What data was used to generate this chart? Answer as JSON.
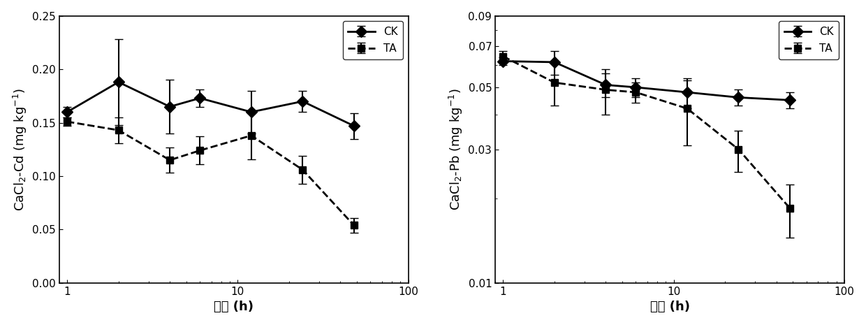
{
  "cd_x": [
    1,
    2,
    4,
    6,
    12,
    24,
    48
  ],
  "cd_ck_y": [
    0.16,
    0.188,
    0.165,
    0.173,
    0.16,
    0.17,
    0.147
  ],
  "cd_ck_err": [
    0.005,
    0.04,
    0.025,
    0.008,
    0.02,
    0.01,
    0.012
  ],
  "cd_ta_y": [
    0.151,
    0.143,
    0.115,
    0.124,
    0.138,
    0.106,
    0.054
  ],
  "cd_ta_err": [
    0.004,
    0.012,
    0.012,
    0.013,
    0.022,
    0.013,
    0.007
  ],
  "cd_ylabel": "CaCl2-Cd (mg kg-1)",
  "cd_ylim": [
    0.0,
    0.25
  ],
  "cd_yticks": [
    0.0,
    0.05,
    0.1,
    0.15,
    0.2,
    0.25
  ],
  "pb_x": [
    1,
    2,
    4,
    6,
    12,
    24,
    48
  ],
  "pb_ck_y": [
    0.062,
    0.0615,
    0.051,
    0.05,
    0.048,
    0.046,
    0.045
  ],
  "pb_ck_err": [
    0.002,
    0.006,
    0.005,
    0.004,
    0.006,
    0.003,
    0.003
  ],
  "pb_ta_y": [
    0.0645,
    0.052,
    0.049,
    0.048,
    0.042,
    0.03,
    0.0185
  ],
  "pb_ta_err": [
    0.003,
    0.009,
    0.009,
    0.004,
    0.011,
    0.005,
    0.004
  ],
  "pb_ylabel": "CaCl2-Pb (mg kg-1)",
  "pb_ylim_log": [
    0.01,
    0.09
  ],
  "pb_yticks": [
    0.01,
    0.03,
    0.05,
    0.07,
    0.09
  ],
  "xlabel": "时间 (h)",
  "xlim_left": 0.9,
  "xlim_right": 100,
  "xtick_vals": [
    1,
    10,
    100
  ],
  "xtick_labels": [
    "1",
    "10",
    "100"
  ],
  "color_line": "#000000",
  "linewidth": 2.0,
  "markersize_diamond": 8,
  "markersize_square": 7,
  "capsize": 4,
  "elinewidth": 1.5,
  "fontsize_label": 13,
  "fontsize_tick": 11,
  "fontsize_legend": 11
}
